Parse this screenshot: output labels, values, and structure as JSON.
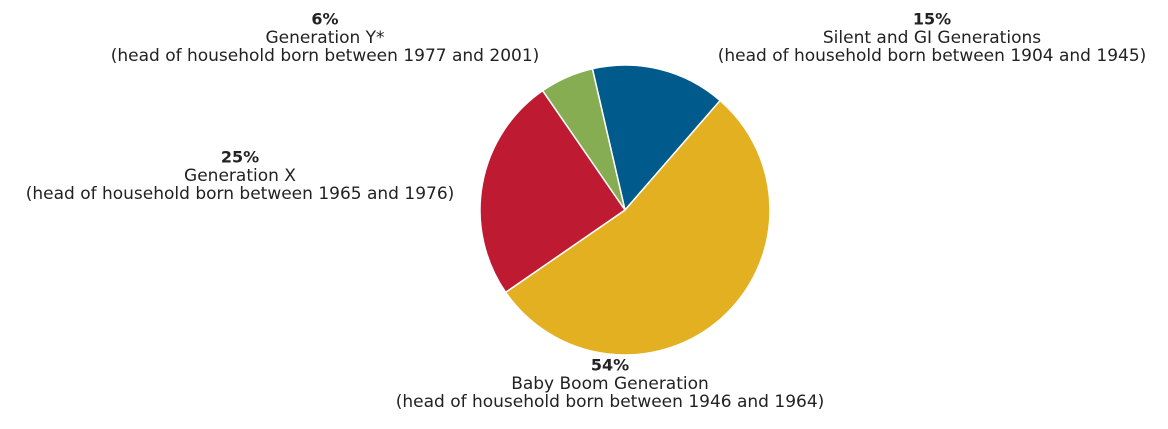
{
  "chart_data": {
    "type": "pie",
    "categories": [
      "Silent and GI Generations",
      "Baby Boom Generation",
      "Generation X",
      "Generation Y*"
    ],
    "descriptions": [
      "(head of household born between 1904 and 1945)",
      "(head of household born between 1946 and 1964)",
      "(head of household born between 1965 and 1976)",
      "(head of household born between 1977 and 2001)"
    ],
    "values": [
      15,
      54,
      25,
      6
    ],
    "value_labels": [
      "15%",
      "54%",
      "25%",
      "6%"
    ],
    "colors": [
      "#005a8c",
      "#e3b022",
      "#be1a32",
      "#86ad52"
    ]
  }
}
